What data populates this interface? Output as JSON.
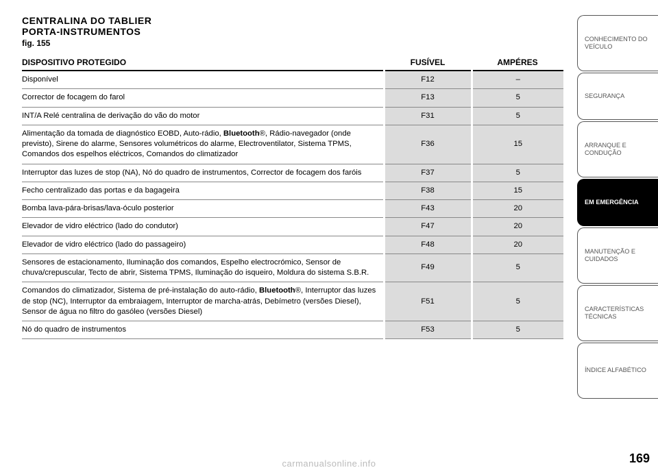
{
  "title": {
    "line1": "CENTRALINA DO TABLIER",
    "line2": "PORTA-INSTRUMENTOS",
    "fig": "fig. 155"
  },
  "table": {
    "headers": {
      "device": "DISPOSITIVO PROTEGIDO",
      "fuse": "FUSÍVEL",
      "amps": "AMPÉRES"
    },
    "rows": [
      {
        "device": "Disponível",
        "fuse": "F12",
        "amps": "–"
      },
      {
        "device": "Corrector de focagem do farol",
        "fuse": "F13",
        "amps": "5"
      },
      {
        "device": "INT/A Relé centralina de derivação do vão do motor",
        "fuse": "F31",
        "amps": "5"
      },
      {
        "device_pre": "Alimentação da tomada de diagnóstico EOBD, Auto-rádio, ",
        "device_bold": "Bluetooth",
        "device_post": "®, Rádio-navegador (onde previsto), Sirene do alarme, Sensores volumétricos do alarme, Electroventilator, Sistema TPMS, Comandos dos espelhos eléctricos, Comandos do climatizador",
        "fuse": "F36",
        "amps": "15"
      },
      {
        "device": "Interruptor das luzes de stop (NA), Nó do quadro de instrumentos, Corrector de focagem dos faróis",
        "fuse": "F37",
        "amps": "5"
      },
      {
        "device": "Fecho centralizado das portas e da bagageira",
        "fuse": "F38",
        "amps": "15"
      },
      {
        "device": "Bomba lava-pára-brisas/lava-óculo posterior",
        "fuse": "F43",
        "amps": "20"
      },
      {
        "device": "Elevador de vidro eléctrico (lado do condutor)",
        "fuse": "F47",
        "amps": "20"
      },
      {
        "device": "Elevador de vidro eléctrico (lado do passageiro)",
        "fuse": "F48",
        "amps": "20"
      },
      {
        "device": "Sensores de estacionamento, Iluminação dos comandos, Espelho electrocrómico, Sensor de chuva/crepuscular, Tecto de abrir, Sistema TPMS, Iluminação do isqueiro, Moldura do sistema S.B.R.",
        "fuse": "F49",
        "amps": "5"
      },
      {
        "device_pre": "Comandos do climatizador, Sistema de pré-instalação do auto-rádio, ",
        "device_bold": "Bluetooth",
        "device_post": "®, Interruptor das luzes de stop (NC), Interruptor da embraiagem, Interruptor de marcha-atrás, Debímetro (versões Diesel), Sensor de água no filtro do gasóleo (versões Diesel)",
        "fuse": "F51",
        "amps": "5"
      },
      {
        "device": "Nó do quadro de instrumentos",
        "fuse": "F53",
        "amps": "5"
      }
    ]
  },
  "sidebar": {
    "items": [
      {
        "label": "CONHECIMENTO DO VEÍCULO",
        "active": false,
        "tall": true
      },
      {
        "label": "SEGURANÇA",
        "active": false,
        "tall": false
      },
      {
        "label": "ARRANQUE E CONDUÇÃO",
        "active": false,
        "tall": true
      },
      {
        "label": "EM EMERGÊNCIA",
        "active": true,
        "tall": false
      },
      {
        "label": "MANUTENÇÃO E CUIDADOS",
        "active": false,
        "tall": true
      },
      {
        "label": "CARACTERÍSTICAS TÉCNICAS",
        "active": false,
        "tall": true
      },
      {
        "label": "ÍNDICE ALFABÉTICO",
        "active": false,
        "tall": true
      }
    ]
  },
  "page_number": "169",
  "watermark": "carmanualsonline.info",
  "colors": {
    "shaded_bg": "#dcdcdc",
    "rule": "#888888",
    "tab_border": "#555555",
    "tab_text": "#555555",
    "active_bg": "#000000",
    "active_text": "#ffffff",
    "watermark": "#bbbbbb"
  }
}
